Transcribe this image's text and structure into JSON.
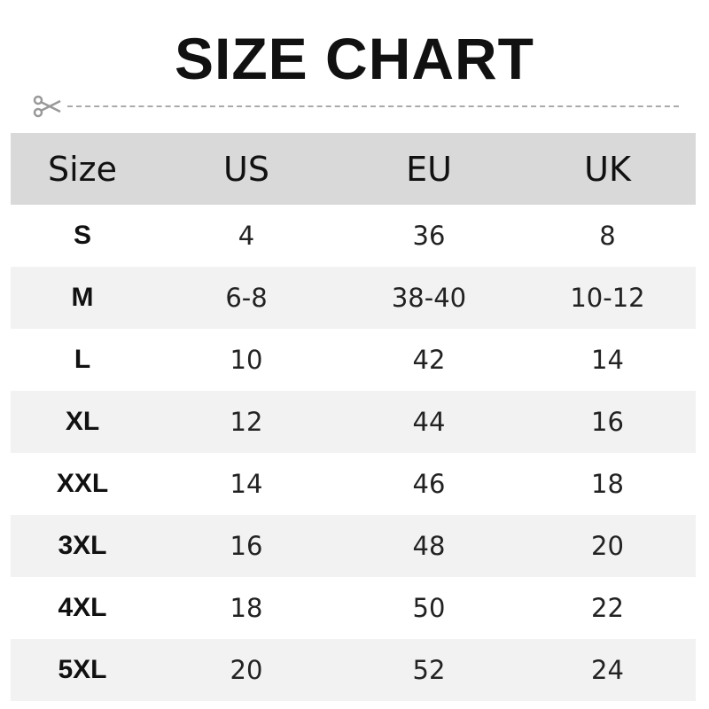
{
  "title": "SIZE CHART",
  "icons": {
    "scissors": "scissors-icon"
  },
  "colors": {
    "header_bg": "#d9d9d9",
    "alt_row_bg": "#f2f2f2",
    "cutline": "#aaaaaa"
  },
  "chart_data": {
    "type": "table",
    "columns": [
      "Size",
      "US",
      "EU",
      "UK"
    ],
    "rows": [
      [
        "S",
        "4",
        "36",
        "8"
      ],
      [
        "M",
        "6-8",
        "38-40",
        "10-12"
      ],
      [
        "L",
        "10",
        "42",
        "14"
      ],
      [
        "XL",
        "12",
        "44",
        "16"
      ],
      [
        "XXL",
        "14",
        "46",
        "18"
      ],
      [
        "3XL",
        "16",
        "48",
        "20"
      ],
      [
        "4XL",
        "18",
        "50",
        "22"
      ],
      [
        "5XL",
        "20",
        "52",
        "24"
      ]
    ]
  }
}
